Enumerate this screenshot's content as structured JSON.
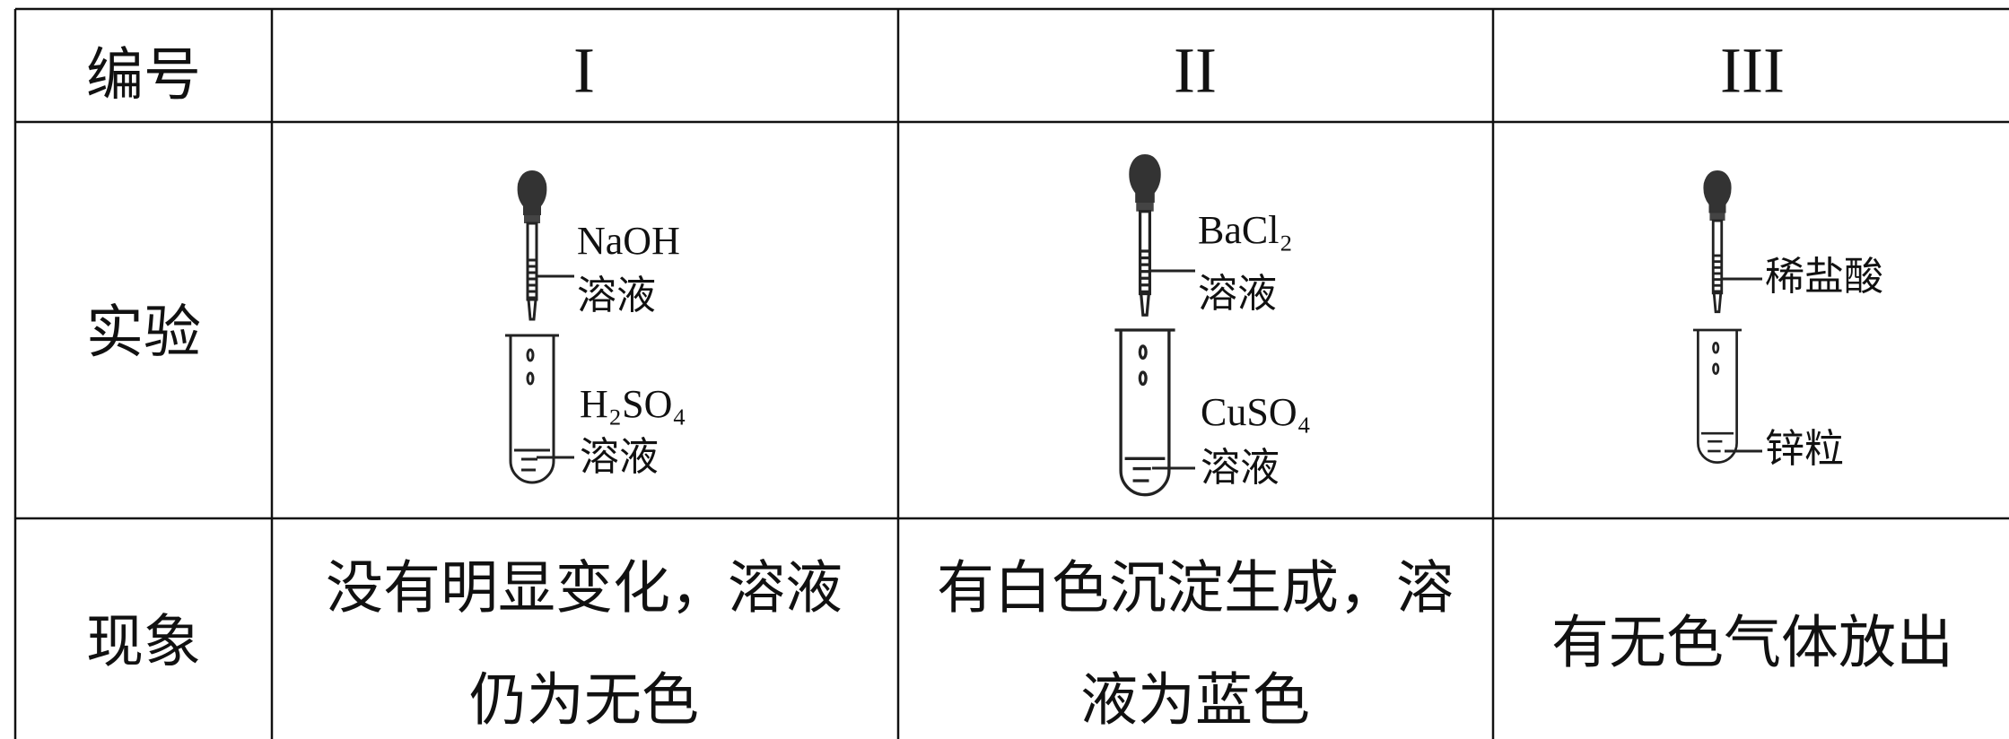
{
  "table": {
    "header": [
      "编号",
      "I",
      "II",
      "III"
    ],
    "experiment": {
      "label": "实验",
      "cells": [
        {
          "dropper": [
            "NaOH",
            "溶液"
          ],
          "tube": [
            "H₂SO₄",
            "溶液"
          ]
        },
        {
          "dropper": [
            "BaCl₂",
            "溶液"
          ],
          "tube": [
            "CuSO₄",
            "溶液"
          ]
        },
        {
          "dropper": [
            "稀盐酸"
          ],
          "tube": [
            "锌粒"
          ]
        }
      ]
    },
    "phenomenon": {
      "label": "现象",
      "cells": [
        [
          "没有明显变化，溶液",
          "仍为无色"
        ],
        [
          "有白色沉淀生成，溶",
          "液为蓝色"
        ],
        [
          "有无色气体放出"
        ]
      ]
    }
  }
}
